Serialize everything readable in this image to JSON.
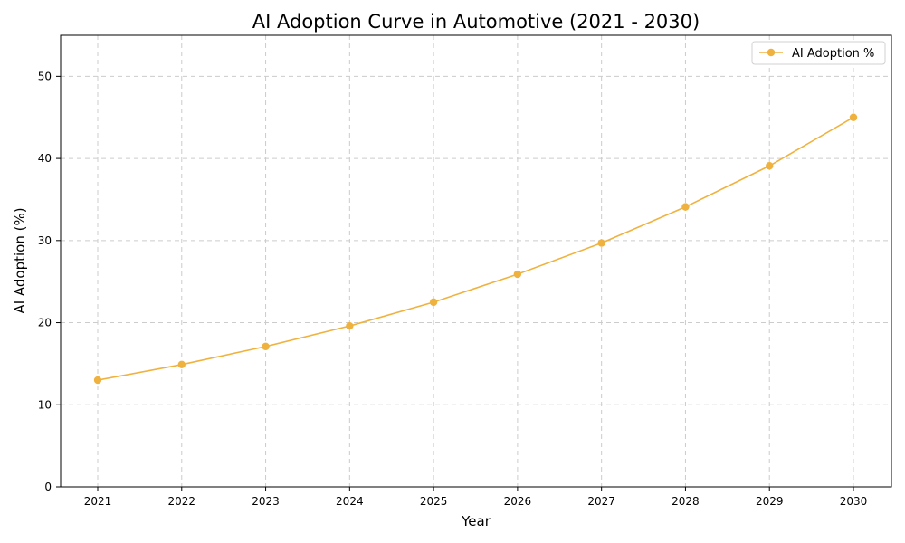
{
  "chart_data": {
    "type": "line",
    "title": "AI Adoption Curve in Automotive (2021 - 2030)",
    "xlabel": "Year",
    "ylabel": "AI Adoption (%)",
    "categories": [
      "2021",
      "2022",
      "2023",
      "2024",
      "2025",
      "2026",
      "2027",
      "2028",
      "2029",
      "2030"
    ],
    "series": [
      {
        "name": "AI Adoption %",
        "values": [
          13.0,
          14.9,
          17.1,
          19.6,
          22.5,
          25.9,
          29.7,
          34.1,
          39.1,
          45.0
        ],
        "color": "#f0b23e",
        "marker": "circle"
      }
    ],
    "ylim": [
      0,
      55
    ],
    "yticks": [
      "0",
      "10",
      "20",
      "30",
      "40",
      "50"
    ],
    "grid": true,
    "grid_style": "dashed",
    "legend_position": "top-right"
  }
}
